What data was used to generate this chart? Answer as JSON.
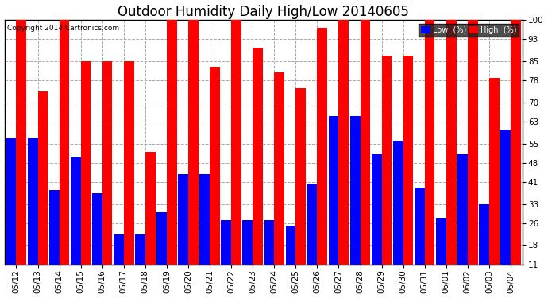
{
  "title": "Outdoor Humidity Daily High/Low 20140605",
  "copyright": "Copyright 2014 Cartronics.com",
  "dates": [
    "05/12",
    "05/13",
    "05/14",
    "05/15",
    "05/16",
    "05/17",
    "05/18",
    "05/19",
    "05/20",
    "05/21",
    "05/22",
    "05/23",
    "05/24",
    "05/25",
    "05/26",
    "05/27",
    "05/28",
    "05/29",
    "05/30",
    "05/31",
    "06/01",
    "06/02",
    "06/03",
    "06/04"
  ],
  "high": [
    100,
    74,
    100,
    85,
    85,
    85,
    52,
    100,
    100,
    83,
    100,
    90,
    81,
    75,
    97,
    100,
    100,
    87,
    87,
    100,
    100,
    100,
    79,
    100
  ],
  "low": [
    57,
    57,
    38,
    50,
    37,
    22,
    22,
    30,
    44,
    44,
    27,
    27,
    27,
    25,
    40,
    65,
    65,
    51,
    56,
    39,
    28,
    51,
    33,
    60
  ],
  "high_color": "#ff0000",
  "low_color": "#0000ff",
  "bg_color": "#ffffff",
  "plot_bg_color": "#ffffff",
  "grid_color": "#aaaaaa",
  "ylim_min": 11,
  "ylim_max": 100,
  "yticks": [
    11,
    18,
    26,
    33,
    41,
    48,
    55,
    63,
    70,
    78,
    85,
    93,
    100
  ],
  "title_fontsize": 12,
  "axis_fontsize": 7.5,
  "legend_label_low": "Low  (%)",
  "legend_label_high": "High  (%)"
}
